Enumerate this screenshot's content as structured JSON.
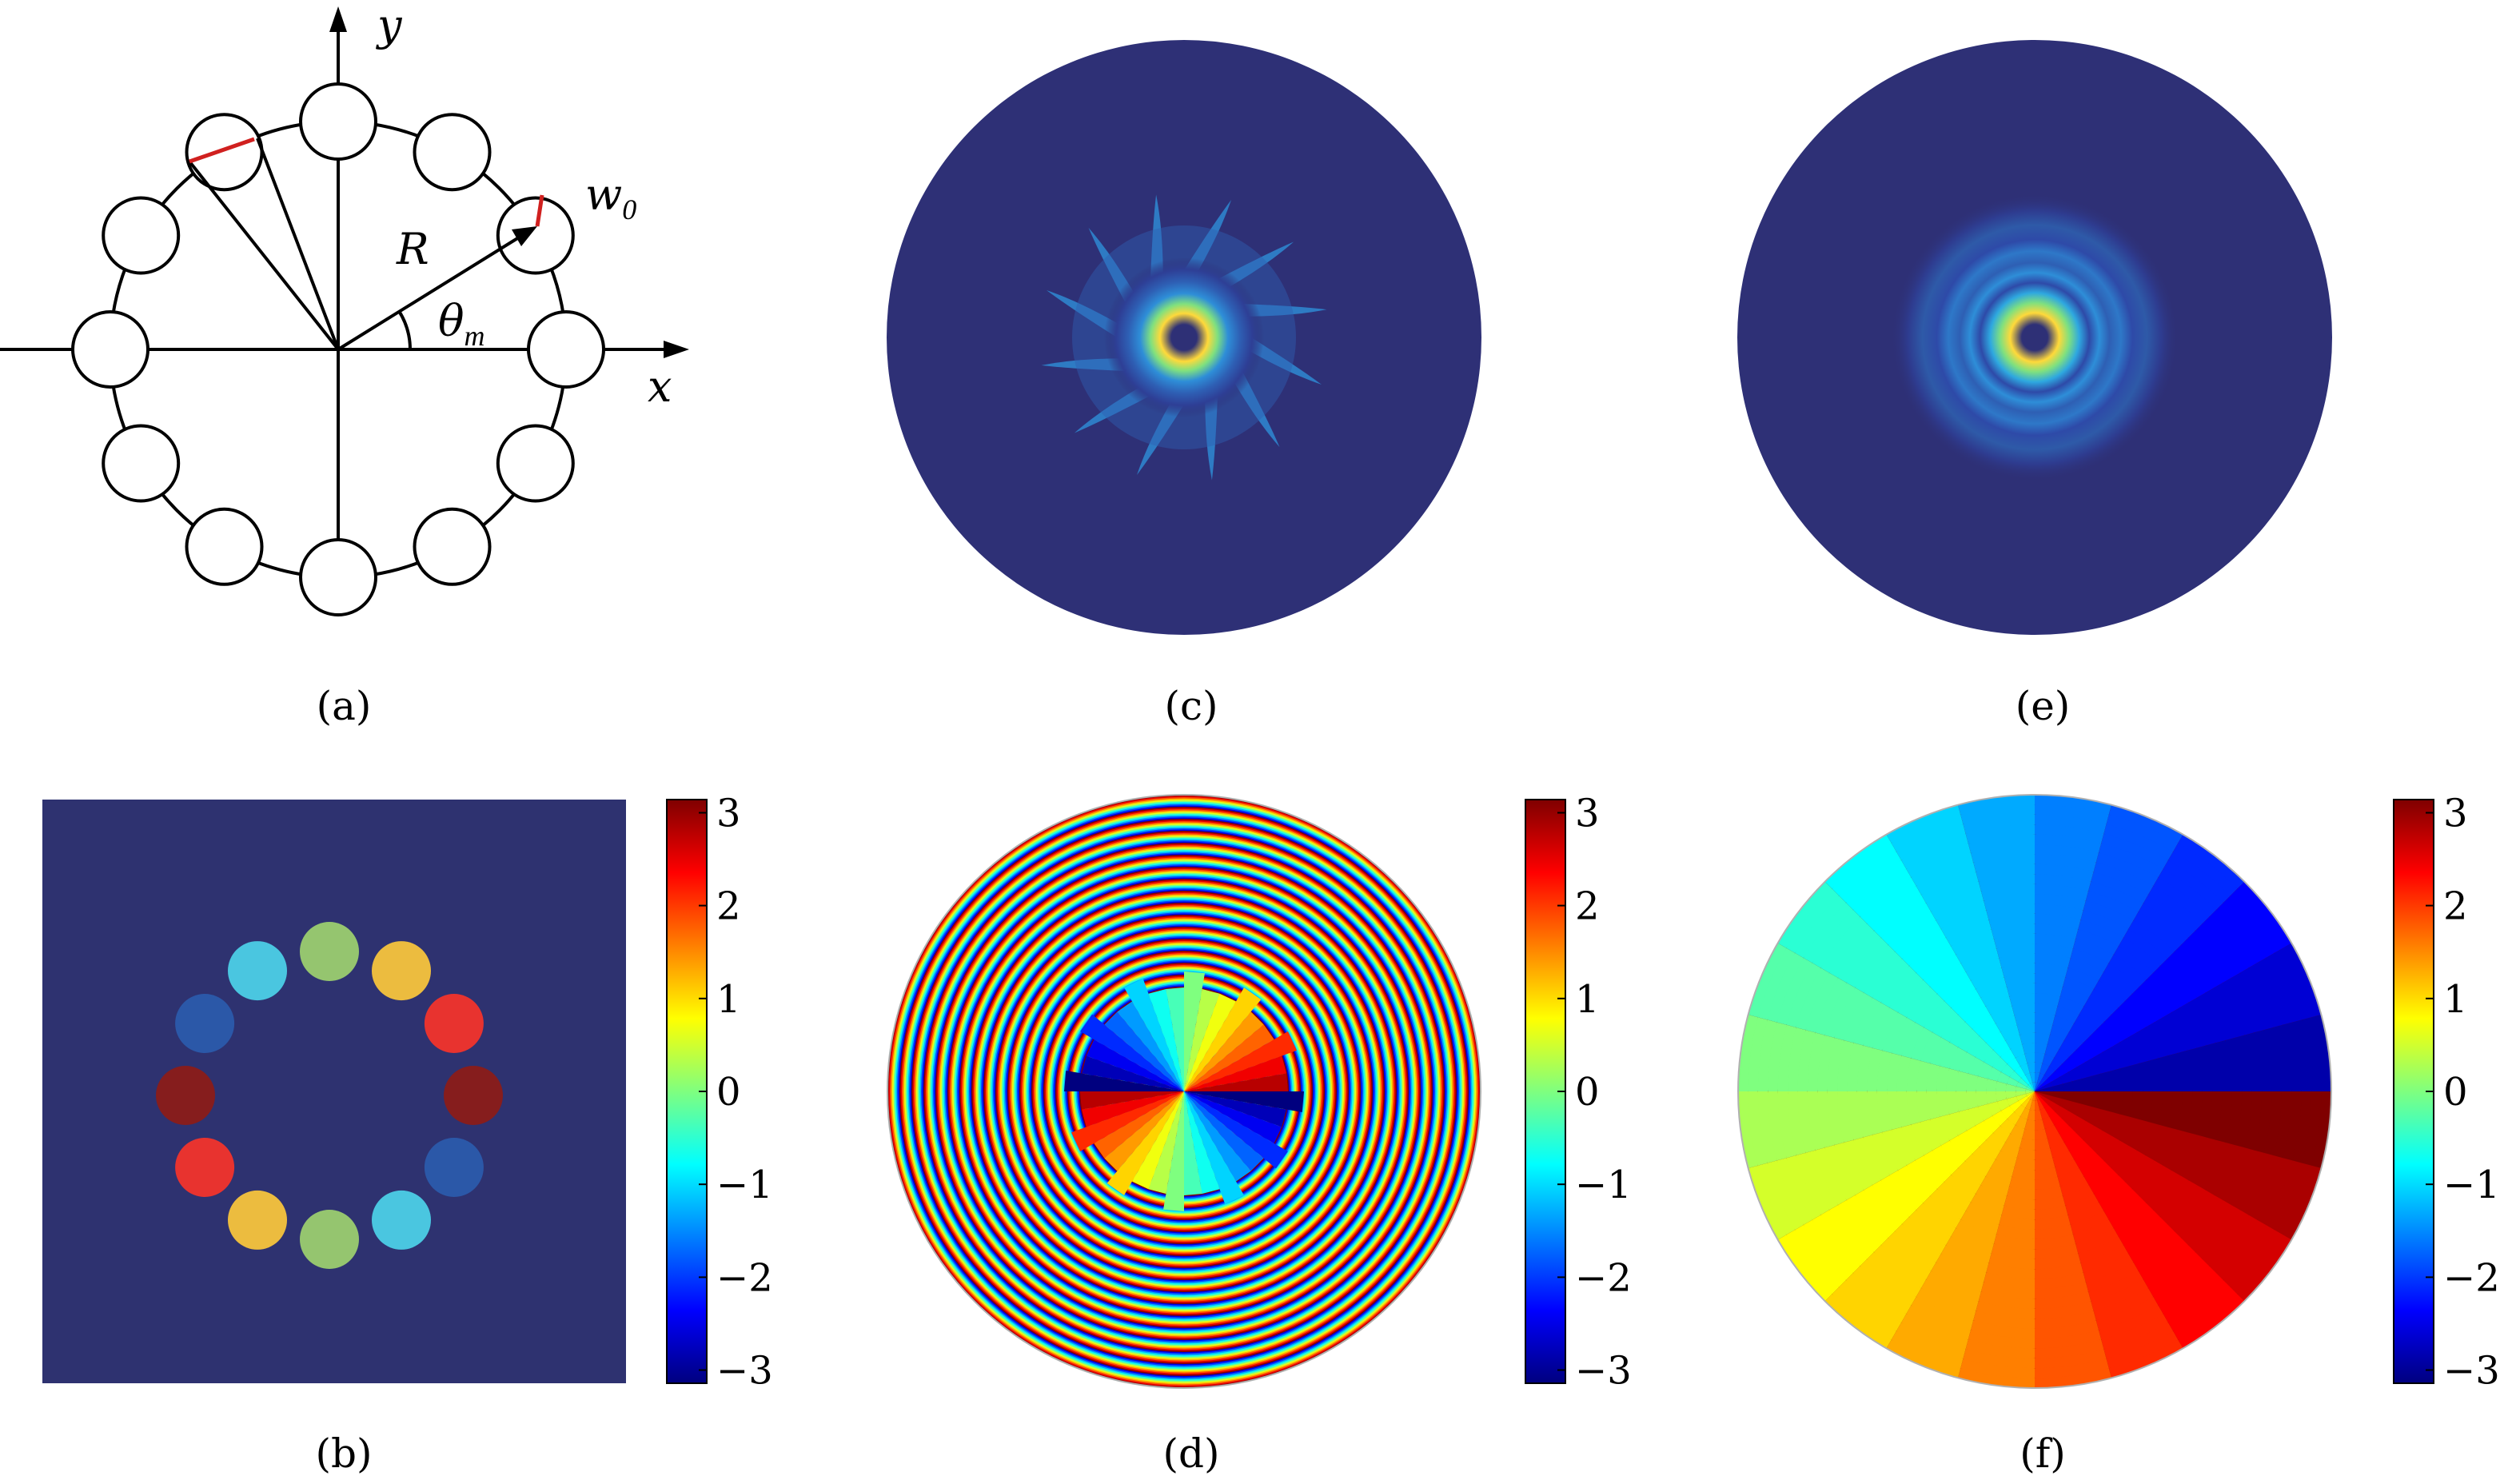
{
  "colors": {
    "background": "#2e3076",
    "panel_b_background": "#2e3270",
    "red_marker": "#d0201f",
    "outline": "#000000"
  },
  "panel_a": {
    "caption": "(a)",
    "labels": {
      "x": "x",
      "y": "y",
      "R": "R",
      "theta": "θ",
      "theta_sub": "m",
      "w": "w",
      "w_sub": "0"
    },
    "num_beamlets": 12
  },
  "panel_b": {
    "caption": "(b)",
    "beamlet_colors": [
      "#95c56f",
      "#ecbc3f",
      "#e8332f",
      "#861d1d",
      "#2b58a8",
      "#4ac6e0",
      "#95c56f",
      "#ecbc3f",
      "#e8332f",
      "#861d1d",
      "#2b58a8",
      "#4ac6e0"
    ]
  },
  "panel_c": {
    "caption": "(c)"
  },
  "panel_d": {
    "caption": "(d)"
  },
  "panel_e": {
    "caption": "(e)"
  },
  "panel_f": {
    "caption": "(f)"
  },
  "colorbar": {
    "ticks": [
      "3",
      "2",
      "1",
      "0",
      "−1",
      "−2",
      "−3"
    ],
    "tick_values": [
      3,
      2,
      1,
      0,
      -1,
      -2,
      -3
    ],
    "range": [
      -3.14159,
      3.14159
    ],
    "colormap": [
      "#00007f",
      "#0000ff",
      "#007fff",
      "#00ffff",
      "#7fff7f",
      "#ffff00",
      "#ff7f00",
      "#ff0000",
      "#7f0000"
    ]
  }
}
